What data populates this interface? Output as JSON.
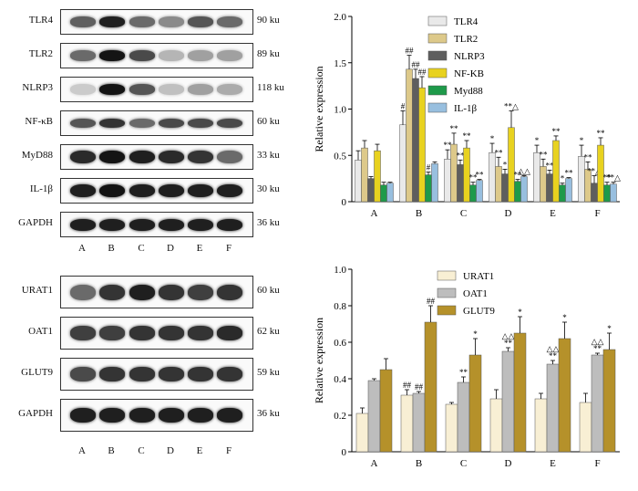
{
  "blots_top": {
    "rows": [
      {
        "protein": "TLR4",
        "size": "90 ku",
        "intensity": [
          0.65,
          0.95,
          0.6,
          0.45,
          0.7,
          0.6
        ],
        "height": 0.45
      },
      {
        "protein": "TLR2",
        "size": "89 ku",
        "intensity": [
          0.6,
          1.0,
          0.75,
          0.25,
          0.35,
          0.35
        ],
        "height": 0.45
      },
      {
        "protein": "NLRP3",
        "size": "118 ku",
        "intensity": [
          0.15,
          1.0,
          0.7,
          0.2,
          0.35,
          0.3
        ],
        "height": 0.45
      },
      {
        "protein": "NF-κB",
        "size": "60 ku",
        "intensity": [
          0.7,
          0.85,
          0.6,
          0.75,
          0.75,
          0.75
        ],
        "height": 0.4
      },
      {
        "protein": "MyD88",
        "size": "33 ku",
        "intensity": [
          0.9,
          1.0,
          0.95,
          0.9,
          0.85,
          0.6
        ],
        "height": 0.55
      },
      {
        "protein": "IL-1β",
        "size": "30 ku",
        "intensity": [
          0.95,
          1.0,
          0.95,
          0.95,
          0.95,
          0.95
        ],
        "height": 0.55
      },
      {
        "protein": "GAPDH",
        "size": "36 ku",
        "intensity": [
          0.95,
          0.95,
          0.95,
          0.95,
          0.95,
          0.95
        ],
        "height": 0.5
      }
    ],
    "lanes": [
      "A",
      "B",
      "C",
      "D",
      "E",
      "F"
    ]
  },
  "blots_bottom": {
    "rows": [
      {
        "protein": "URAT1",
        "size": "60 ku",
        "intensity": [
          0.6,
          0.85,
          0.95,
          0.85,
          0.8,
          0.85
        ],
        "height": 0.5
      },
      {
        "protein": "OAT1",
        "size": "62 ku",
        "intensity": [
          0.8,
          0.8,
          0.85,
          0.85,
          0.85,
          0.9
        ],
        "height": 0.45
      },
      {
        "protein": "GLUT9",
        "size": "59 ku",
        "intensity": [
          0.75,
          0.85,
          0.85,
          0.85,
          0.85,
          0.85
        ],
        "height": 0.45
      },
      {
        "protein": "GAPDH",
        "size": "36 ku",
        "intensity": [
          0.95,
          0.95,
          0.95,
          0.95,
          0.95,
          0.95
        ],
        "height": 0.45
      }
    ],
    "lanes": [
      "A",
      "B",
      "C",
      "D",
      "E",
      "F"
    ]
  },
  "chart_data": [
    {
      "type": "bar",
      "ylabel": "Relative expression",
      "ylim": [
        0,
        2.0
      ],
      "yticks": [
        "0",
        "0.5",
        "1.0",
        "1.5",
        "2.0"
      ],
      "categories": [
        "A",
        "B",
        "C",
        "D",
        "E",
        "F"
      ],
      "legend_position": "top-right",
      "series": [
        {
          "name": "TLR4",
          "color": "#e9e9e9",
          "values": [
            0.45,
            0.83,
            0.46,
            0.53,
            0.53,
            0.49
          ],
          "errors": [
            0.1,
            0.15,
            0.1,
            0.1,
            0.08,
            0.12
          ],
          "marks": [
            "",
            "#",
            "**",
            "*",
            "*",
            "*"
          ]
        },
        {
          "name": "TLR2",
          "color": "#ddc98a",
          "values": [
            0.58,
            1.43,
            0.62,
            0.38,
            0.38,
            0.35
          ],
          "errors": [
            0.08,
            0.15,
            0.12,
            0.1,
            0.08,
            0.08
          ],
          "marks": [
            "",
            "##",
            "**",
            "**",
            "**",
            "**"
          ]
        },
        {
          "name": "NLRP3",
          "color": "#5e5e5e",
          "values": [
            0.25,
            1.33,
            0.4,
            0.3,
            0.3,
            0.2
          ],
          "errors": [
            0.02,
            0.1,
            0.05,
            0.05,
            0.04,
            0.08
          ],
          "marks": [
            "",
            "##",
            "**",
            "*",
            "**",
            "**△"
          ]
        },
        {
          "name": "NF-KB",
          "color": "#e8d21f",
          "values": [
            0.55,
            1.23,
            0.58,
            0.8,
            0.66,
            0.61
          ],
          "errors": [
            0.07,
            0.12,
            0.08,
            0.18,
            0.05,
            0.08
          ],
          "marks": [
            "",
            "##",
            "**",
            "**△",
            "**",
            "**"
          ]
        },
        {
          "name": "Myd88",
          "color": "#1e9a4a",
          "values": [
            0.18,
            0.29,
            0.18,
            0.22,
            0.18,
            0.18
          ],
          "errors": [
            0.03,
            0.03,
            0.03,
            0.02,
            0.02,
            0.03
          ],
          "marks": [
            "",
            "#",
            "**",
            "**",
            "*",
            "**"
          ]
        },
        {
          "name": "IL-1β",
          "color": "#98bfdf",
          "values": [
            0.2,
            0.41,
            0.23,
            0.27,
            0.25,
            0.19
          ],
          "errors": [
            0.01,
            0.02,
            0.01,
            0.01,
            0.01,
            0.02
          ],
          "marks": [
            "",
            "",
            "**",
            "△△",
            "**",
            "**△"
          ]
        }
      ]
    },
    {
      "type": "bar",
      "ylabel": "Relative expression",
      "ylim": [
        0,
        1.0
      ],
      "yticks": [
        "0",
        "0.2",
        "0.4",
        "0.6",
        "0.8",
        "1.0"
      ],
      "categories": [
        "A",
        "B",
        "C",
        "D",
        "E",
        "F"
      ],
      "legend_position": "top-left",
      "series": [
        {
          "name": "URAT1",
          "color": "#f8efd4",
          "values": [
            0.21,
            0.31,
            0.26,
            0.29,
            0.29,
            0.27
          ],
          "errors": [
            0.03,
            0.03,
            0.01,
            0.05,
            0.03,
            0.05
          ],
          "marks": [
            "",
            "##",
            "",
            "",
            "",
            ""
          ]
        },
        {
          "name": "OAT1",
          "color": "#bdbdbd",
          "values": [
            0.39,
            0.32,
            0.38,
            0.55,
            0.48,
            0.53
          ],
          "errors": [
            0.01,
            0.01,
            0.03,
            0.02,
            0.02,
            0.01
          ],
          "marks": [
            "",
            "##",
            "**",
            "△△\n**",
            "△△\n**",
            "△△\n**"
          ]
        },
        {
          "name": "GLUT9",
          "color": "#b5912a",
          "values": [
            0.45,
            0.71,
            0.53,
            0.65,
            0.62,
            0.56
          ],
          "errors": [
            0.06,
            0.09,
            0.09,
            0.09,
            0.09,
            0.09
          ],
          "marks": [
            "",
            "##",
            "*",
            "*",
            "*",
            "*"
          ]
        }
      ]
    }
  ]
}
